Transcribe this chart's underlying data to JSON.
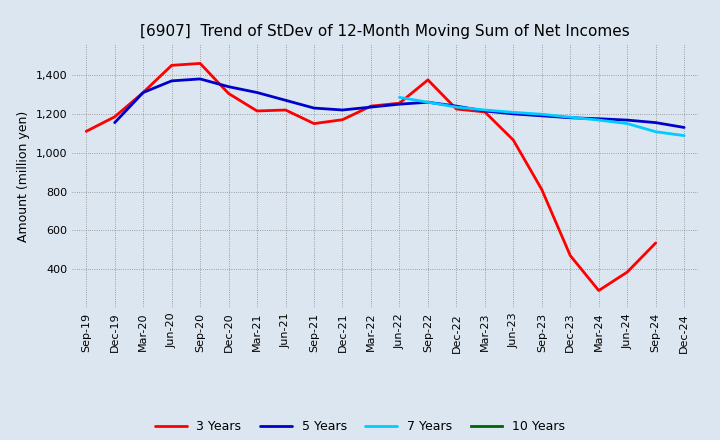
{
  "title": "[6907]  Trend of StDev of 12-Month Moving Sum of Net Incomes",
  "ylabel": "Amount (million yen)",
  "x_labels": [
    "Sep-19",
    "Dec-19",
    "Mar-20",
    "Jun-20",
    "Sep-20",
    "Dec-20",
    "Mar-21",
    "Jun-21",
    "Sep-21",
    "Dec-21",
    "Mar-22",
    "Jun-22",
    "Sep-22",
    "Dec-22",
    "Mar-23",
    "Jun-23",
    "Sep-23",
    "Dec-23",
    "Mar-24",
    "Jun-24",
    "Sep-24",
    "Dec-24"
  ],
  "series": {
    "3 Years": {
      "color": "#ff0000",
      "data": [
        1110,
        1185,
        1310,
        1450,
        1460,
        1305,
        1215,
        1220,
        1150,
        1170,
        1240,
        1255,
        1375,
        1225,
        1210,
        1065,
        810,
        470,
        290,
        385,
        535,
        null
      ]
    },
    "5 Years": {
      "color": "#0000cd",
      "data": [
        null,
        1155,
        1310,
        1370,
        1380,
        1340,
        1310,
        1270,
        1230,
        1220,
        1235,
        1250,
        1260,
        1240,
        1215,
        1200,
        1190,
        1180,
        1175,
        1168,
        1155,
        1130
      ]
    },
    "7 Years": {
      "color": "#00ccff",
      "data": [
        null,
        null,
        null,
        null,
        null,
        null,
        null,
        null,
        null,
        null,
        null,
        1285,
        1260,
        1235,
        1220,
        1208,
        1198,
        1183,
        1168,
        1150,
        1108,
        1088
      ]
    },
    "10 Years": {
      "color": "#006400",
      "data": [
        null,
        null,
        null,
        null,
        null,
        null,
        null,
        null,
        null,
        null,
        null,
        null,
        null,
        null,
        null,
        null,
        null,
        null,
        null,
        null,
        null,
        null
      ]
    }
  },
  "ylim": [
    200,
    1560
  ],
  "yticks": [
    400,
    600,
    800,
    1000,
    1200,
    1400
  ],
  "bg_color": "#dce6f1",
  "plot_bg_color": "#dce6f1",
  "grid_color": "#888888",
  "title_fontsize": 11,
  "label_fontsize": 9,
  "tick_fontsize": 8,
  "legend_fontsize": 9
}
